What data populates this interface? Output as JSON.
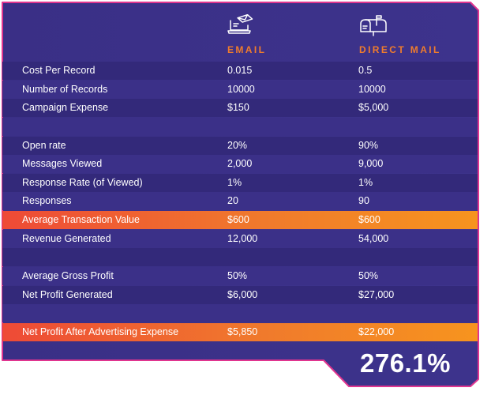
{
  "header": {
    "email_label": "EMAIL",
    "mail_label": "DIRECT MAIL"
  },
  "colors": {
    "card": "#3b3088",
    "row_dark": "#33297a",
    "border": "#e0358f",
    "accent": "#f07c2c"
  },
  "rows": [
    {
      "label": "Cost Per Record",
      "email": "0.015",
      "mail": "0.5"
    },
    {
      "label": "Number of Records",
      "email": "10000",
      "mail": "10000"
    },
    {
      "label": "Campaign Expense",
      "email": "$150",
      "mail": "$5,000"
    },
    {
      "label": "Open rate",
      "email": "20%",
      "mail": "90%"
    },
    {
      "label": "Messages Viewed",
      "email": "2,000",
      "mail": "9,000"
    },
    {
      "label": "Response Rate (of Viewed)",
      "email": "1%",
      "mail": "1%"
    },
    {
      "label": "Responses",
      "email": "20",
      "mail": "90"
    },
    {
      "label": "Average Transaction Value",
      "email": "$600",
      "mail": "$600"
    },
    {
      "label": "Revenue Generated",
      "email": "12,000",
      "mail": "54,000"
    },
    {
      "label": "Average Gross Profit",
      "email": "50%",
      "mail": "50%"
    },
    {
      "label": "Net Profit Generated",
      "email": "$6,000",
      "mail": "$27,000"
    },
    {
      "label": "Net Profit After Advertising Expense",
      "email": "$5,850",
      "mail": "$22,000"
    }
  ],
  "result": "276.1%"
}
